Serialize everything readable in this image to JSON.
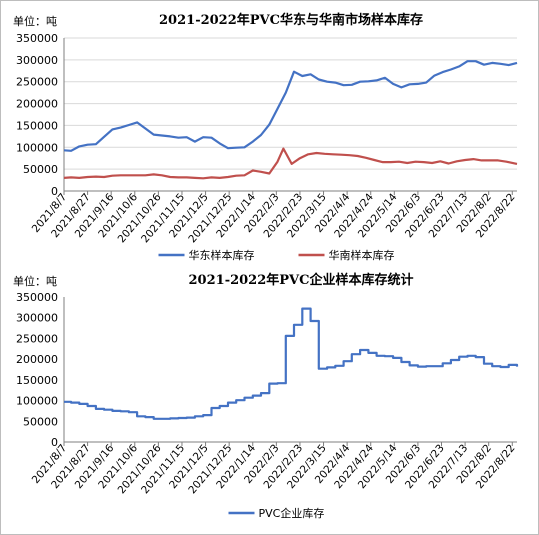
{
  "chart_data": [
    {
      "type": "line",
      "title": "2021-2022年PVC华东与华南市场样本库存",
      "unit_label": "单位：吨",
      "ylim": [
        0,
        350000
      ],
      "y_ticks": [
        "0",
        "50000",
        "100000",
        "150000",
        "200000",
        "250000",
        "300000",
        "350000"
      ],
      "x_ticks": [
        "2021/8/7",
        "2021/8/27",
        "2021/9/16",
        "2021/10/6",
        "2021/10/26",
        "2021/11/15",
        "2021/12/5",
        "2021/12/25",
        "2022/1/14",
        "2022/2/3",
        "2022/2/23",
        "2022/3/15",
        "2022/4/4",
        "2022/4/24",
        "2022/5/14",
        "2022/6/3",
        "2022/6/23",
        "2022/7/13",
        "2022/8/2",
        "2022/8/22"
      ],
      "x_range": [
        "2021-08-07",
        "2022-08-26"
      ],
      "grid": true,
      "legend_position": "bottom",
      "series": [
        {
          "name": "华东样本库存",
          "color": "#4472c4",
          "points": [
            [
              "2021-08-07",
              93000
            ],
            [
              "2021-08-13",
              92000
            ],
            [
              "2021-08-20",
              102000
            ],
            [
              "2021-08-27",
              106000
            ],
            [
              "2021-09-03",
              107000
            ],
            [
              "2021-09-10",
              124000
            ],
            [
              "2021-09-17",
              141000
            ],
            [
              "2021-09-24",
              145000
            ],
            [
              "2021-10-01",
              151000
            ],
            [
              "2021-10-08",
              157000
            ],
            [
              "2021-10-15",
              143000
            ],
            [
              "2021-10-22",
              129000
            ],
            [
              "2021-10-29",
              127000
            ],
            [
              "2021-11-05",
              125000
            ],
            [
              "2021-11-12",
              122000
            ],
            [
              "2021-11-19",
              123000
            ],
            [
              "2021-11-26",
              113000
            ],
            [
              "2021-12-03",
              123000
            ],
            [
              "2021-12-10",
              122000
            ],
            [
              "2021-12-17",
              109000
            ],
            [
              "2021-12-24",
              98000
            ],
            [
              "2021-12-31",
              99000
            ],
            [
              "2022-01-07",
              100000
            ],
            [
              "2022-01-14",
              113000
            ],
            [
              "2022-01-21",
              128000
            ],
            [
              "2022-01-28",
              152000
            ],
            [
              "2022-02-04",
              188000
            ],
            [
              "2022-02-11",
              225000
            ],
            [
              "2022-02-18",
              273000
            ],
            [
              "2022-02-25",
              263000
            ],
            [
              "2022-03-04",
              267000
            ],
            [
              "2022-03-11",
              255000
            ],
            [
              "2022-03-18",
              250000
            ],
            [
              "2022-03-25",
              248000
            ],
            [
              "2022-04-01",
              242000
            ],
            [
              "2022-04-08",
              243000
            ],
            [
              "2022-04-15",
              250000
            ],
            [
              "2022-04-22",
              251000
            ],
            [
              "2022-04-29",
              253000
            ],
            [
              "2022-05-06",
              259000
            ],
            [
              "2022-05-13",
              245000
            ],
            [
              "2022-05-20",
              237000
            ],
            [
              "2022-05-27",
              244000
            ],
            [
              "2022-06-03",
              245000
            ],
            [
              "2022-06-10",
              248000
            ],
            [
              "2022-06-17",
              264000
            ],
            [
              "2022-06-24",
              272000
            ],
            [
              "2022-07-01",
              278000
            ],
            [
              "2022-07-08",
              285000
            ],
            [
              "2022-07-15",
              297000
            ],
            [
              "2022-07-22",
              297000
            ],
            [
              "2022-07-29",
              289000
            ],
            [
              "2022-08-05",
              293000
            ],
            [
              "2022-08-12",
              291000
            ],
            [
              "2022-08-19",
              288000
            ],
            [
              "2022-08-26",
              293000
            ]
          ]
        },
        {
          "name": "华南样本库存",
          "color": "#c0504d",
          "points": [
            [
              "2021-08-07",
              30000
            ],
            [
              "2021-08-13",
              31000
            ],
            [
              "2021-08-20",
              30000
            ],
            [
              "2021-08-27",
              32000
            ],
            [
              "2021-09-03",
              33000
            ],
            [
              "2021-09-10",
              32000
            ],
            [
              "2021-09-17",
              35000
            ],
            [
              "2021-09-24",
              36000
            ],
            [
              "2021-10-01",
              36000
            ],
            [
              "2021-10-08",
              36000
            ],
            [
              "2021-10-15",
              36000
            ],
            [
              "2021-10-22",
              38000
            ],
            [
              "2021-10-29",
              36000
            ],
            [
              "2021-11-05",
              32000
            ],
            [
              "2021-11-12",
              31000
            ],
            [
              "2021-11-19",
              31000
            ],
            [
              "2021-11-26",
              30000
            ],
            [
              "2021-12-03",
              29000
            ],
            [
              "2021-12-10",
              31000
            ],
            [
              "2021-12-17",
              30000
            ],
            [
              "2021-12-24",
              32000
            ],
            [
              "2021-12-31",
              35000
            ],
            [
              "2022-01-07",
              36000
            ],
            [
              "2022-01-14",
              47000
            ],
            [
              "2022-01-21",
              44000
            ],
            [
              "2022-01-28",
              40000
            ],
            [
              "2022-02-04",
              67000
            ],
            [
              "2022-02-09",
              97000
            ],
            [
              "2022-02-16",
              62000
            ],
            [
              "2022-02-23",
              75000
            ],
            [
              "2022-03-02",
              84000
            ],
            [
              "2022-03-09",
              87000
            ],
            [
              "2022-03-16",
              85000
            ],
            [
              "2022-03-23",
              84000
            ],
            [
              "2022-03-30",
              83000
            ],
            [
              "2022-04-06",
              82000
            ],
            [
              "2022-04-13",
              80000
            ],
            [
              "2022-04-20",
              76000
            ],
            [
              "2022-04-27",
              71000
            ],
            [
              "2022-05-04",
              66000
            ],
            [
              "2022-05-11",
              66000
            ],
            [
              "2022-05-18",
              67000
            ],
            [
              "2022-05-25",
              64000
            ],
            [
              "2022-06-01",
              67000
            ],
            [
              "2022-06-08",
              66000
            ],
            [
              "2022-06-15",
              64000
            ],
            [
              "2022-06-22",
              68000
            ],
            [
              "2022-06-29",
              63000
            ],
            [
              "2022-07-06",
              68000
            ],
            [
              "2022-07-13",
              71000
            ],
            [
              "2022-07-20",
              73000
            ],
            [
              "2022-07-27",
              70000
            ],
            [
              "2022-08-03",
              70000
            ],
            [
              "2022-08-10",
              70000
            ],
            [
              "2022-08-17",
              67000
            ],
            [
              "2022-08-26",
              62000
            ]
          ]
        }
      ]
    },
    {
      "type": "line",
      "step": true,
      "title": "2021-2022年PVC企业样本库存统计",
      "unit_label": "单位：吨",
      "ylim": [
        0,
        350000
      ],
      "y_ticks": [
        "0",
        "50000",
        "100000",
        "150000",
        "200000",
        "250000",
        "300000",
        "350000"
      ],
      "x_ticks": [
        "2021/8/7",
        "2021/8/27",
        "2021/9/16",
        "2021/10/6",
        "2021/10/26",
        "2021/11/15",
        "2021/12/5",
        "2021/12/25",
        "2022/1/14",
        "2022/2/3",
        "2022/2/23",
        "2022/3/15",
        "2022/4/4",
        "2022/4/24",
        "2022/5/14",
        "2022/6/3",
        "2022/6/23",
        "2022/7/13",
        "2022/8/2",
        "2022/8/22"
      ],
      "x_range": [
        "2021-08-07",
        "2022-08-26"
      ],
      "grid": false,
      "legend_position": "bottom",
      "series": [
        {
          "name": "PVC企业库存",
          "color": "#4472c4",
          "points": [
            [
              "2021-08-07",
              97000
            ],
            [
              "2021-08-13",
              95000
            ],
            [
              "2021-08-20",
              92000
            ],
            [
              "2021-08-27",
              87000
            ],
            [
              "2021-09-03",
              80000
            ],
            [
              "2021-09-10",
              78000
            ],
            [
              "2021-09-17",
              75000
            ],
            [
              "2021-09-24",
              74000
            ],
            [
              "2021-10-01",
              72000
            ],
            [
              "2021-10-08",
              62000
            ],
            [
              "2021-10-15",
              60000
            ],
            [
              "2021-10-22",
              56000
            ],
            [
              "2021-10-29",
              56000
            ],
            [
              "2021-11-05",
              57000
            ],
            [
              "2021-11-12",
              58000
            ],
            [
              "2021-11-19",
              59000
            ],
            [
              "2021-11-26",
              62000
            ],
            [
              "2021-12-03",
              65000
            ],
            [
              "2021-12-10",
              82000
            ],
            [
              "2021-12-17",
              87000
            ],
            [
              "2021-12-24",
              95000
            ],
            [
              "2021-12-31",
              101000
            ],
            [
              "2022-01-07",
              107000
            ],
            [
              "2022-01-14",
              112000
            ],
            [
              "2022-01-21",
              118000
            ],
            [
              "2022-01-28",
              141000
            ],
            [
              "2022-02-04",
              142000
            ],
            [
              "2022-02-11",
              256000
            ],
            [
              "2022-02-18",
              283000
            ],
            [
              "2022-02-25",
              322000
            ],
            [
              "2022-03-04",
              292000
            ],
            [
              "2022-03-11",
              177000
            ],
            [
              "2022-03-18",
              180000
            ],
            [
              "2022-03-25",
              184000
            ],
            [
              "2022-04-01",
              195000
            ],
            [
              "2022-04-08",
              212000
            ],
            [
              "2022-04-15",
              222000
            ],
            [
              "2022-04-22",
              215000
            ],
            [
              "2022-04-29",
              208000
            ],
            [
              "2022-05-06",
              207000
            ],
            [
              "2022-05-13",
              203000
            ],
            [
              "2022-05-20",
              193000
            ],
            [
              "2022-05-27",
              185000
            ],
            [
              "2022-06-03",
              182000
            ],
            [
              "2022-06-10",
              183000
            ],
            [
              "2022-06-17",
              183000
            ],
            [
              "2022-06-24",
              190000
            ],
            [
              "2022-07-01",
              198000
            ],
            [
              "2022-07-08",
              206000
            ],
            [
              "2022-07-15",
              208000
            ],
            [
              "2022-07-22",
              205000
            ],
            [
              "2022-07-29",
              189000
            ],
            [
              "2022-08-05",
              183000
            ],
            [
              "2022-08-12",
              181000
            ],
            [
              "2022-08-19",
              186000
            ],
            [
              "2022-08-26",
              182000
            ]
          ]
        }
      ]
    }
  ]
}
